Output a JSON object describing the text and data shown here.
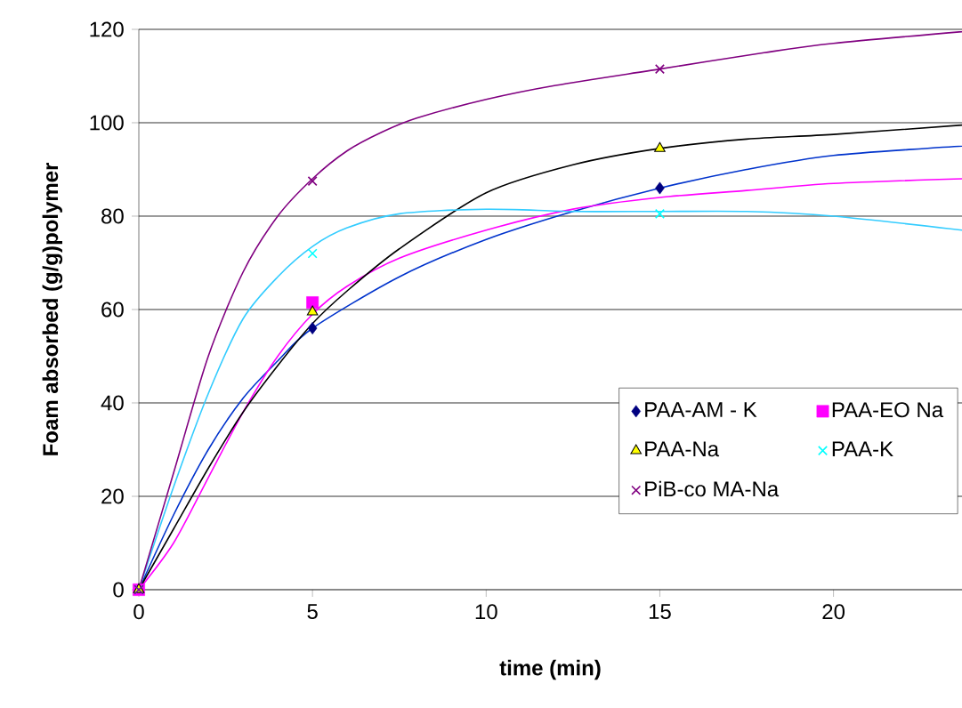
{
  "chart_data": {
    "type": "scatter",
    "xlabel": "time (min)",
    "ylabel": "Foam absorbed  (g/g)polymer",
    "xlim": [
      0,
      23.7
    ],
    "ylim": [
      0,
      120
    ],
    "xticks": [
      0,
      5,
      10,
      15,
      20
    ],
    "yticks": [
      0,
      20,
      40,
      60,
      80,
      100,
      120
    ],
    "grid": "y",
    "legend": "bottom right",
    "series": [
      {
        "type": "line",
        "color": "#0033cc",
        "marker": "none",
        "x": [
          0,
          1,
          2,
          3,
          4,
          5,
          7.5,
          10,
          12.5,
          15,
          17.5,
          20,
          23.7
        ],
        "values": [
          0,
          16,
          30,
          41,
          49,
          56,
          67,
          75,
          81,
          86,
          90,
          93,
          95
        ]
      },
      {
        "type": "line",
        "color": "#ff00ff",
        "marker": "none",
        "x": [
          0,
          1,
          2,
          3,
          4,
          5,
          6,
          7.5,
          10,
          12.5,
          15,
          17.5,
          20,
          23.7
        ],
        "values": [
          0,
          10,
          24,
          38,
          50,
          59,
          65,
          71,
          77,
          81.5,
          84,
          85.5,
          87,
          88
        ]
      },
      {
        "type": "line",
        "color": "#000000",
        "marker": "none",
        "x": [
          0,
          1,
          2,
          3,
          4,
          5,
          6,
          7.5,
          10,
          12.5,
          15,
          17.5,
          20,
          23.7
        ],
        "values": [
          0,
          13,
          26,
          38,
          48,
          57,
          64,
          73,
          85,
          91,
          94.5,
          96.5,
          97.5,
          99.5
        ]
      },
      {
        "type": "line",
        "color": "#33ccff",
        "marker": "none",
        "x": [
          0,
          1,
          2,
          3,
          4,
          5,
          6,
          7.5,
          10,
          12.5,
          15,
          17.5,
          20,
          23.7
        ],
        "values": [
          0,
          22,
          42,
          58,
          67,
          73.5,
          77.5,
          80.5,
          81.5,
          81,
          81,
          81,
          80,
          77
        ]
      },
      {
        "type": "line",
        "color": "#800080",
        "marker": "none",
        "x": [
          0,
          1,
          2,
          3,
          4,
          5,
          6,
          7,
          8,
          10,
          12,
          15,
          18,
          20,
          23.7
        ],
        "values": [
          0,
          25,
          50,
          68,
          80,
          88,
          94,
          98,
          101,
          105,
          108,
          111.5,
          115,
          117,
          119.5
        ]
      },
      {
        "name": "PAA-AM - K",
        "color": "#000080",
        "marker": "diamond",
        "x": [
          5,
          15
        ],
        "values": [
          56,
          86
        ]
      },
      {
        "name": "PAA-EO Na",
        "color": "#ff00ff",
        "marker": "square",
        "x": [
          0,
          5
        ],
        "values": [
          0,
          61.5
        ]
      },
      {
        "name": "PAA-Na",
        "color": "#ffff00",
        "marker": "triangle",
        "x": [
          0,
          5,
          15
        ],
        "values": [
          0,
          59.5,
          94.5
        ]
      },
      {
        "name": "PAA-K",
        "color": "#00ffff",
        "marker": "cross",
        "x": [
          0,
          5,
          15
        ],
        "values": [
          0,
          72,
          80.5
        ]
      },
      {
        "name": "PiB-co MA-Na",
        "color": "#800080",
        "marker": "cross",
        "x": [
          0,
          5,
          15
        ],
        "values": [
          0,
          87.5,
          111.5
        ]
      }
    ]
  }
}
